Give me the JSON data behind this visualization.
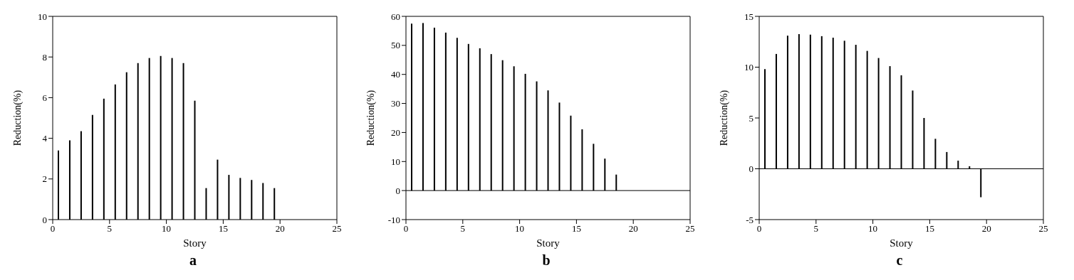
{
  "chart_data": [
    {
      "type": "bar",
      "title": "a",
      "xlabel": "Story",
      "ylabel": "Reduction(%)",
      "x": [
        0.5,
        1.5,
        2.5,
        3.5,
        4.5,
        5.5,
        6.5,
        7.5,
        8.5,
        9.5,
        10.5,
        11.5,
        12.5,
        13.5,
        14.5,
        15.5,
        16.5,
        17.5,
        18.5,
        19.5
      ],
      "series": [
        {
          "color": "#000000",
          "values": [
            3.4,
            3.9,
            4.35,
            5.15,
            5.95,
            6.65,
            7.25,
            7.7,
            7.95,
            8.05,
            7.95,
            7.7,
            5.85,
            1.55,
            2.95,
            2.2,
            2.05,
            1.95,
            1.8,
            1.55
          ]
        }
      ],
      "xlim": [
        0,
        25
      ],
      "xticks": [
        0,
        5,
        10,
        15,
        20,
        25
      ],
      "ylim": [
        0,
        10
      ],
      "yticks": [
        0,
        2,
        4,
        6,
        8,
        10
      ],
      "grid": false,
      "legend": false
    },
    {
      "type": "bar",
      "title": "b",
      "xlabel": "Story",
      "ylabel": "Reduction(%)",
      "x": [
        0.5,
        1.5,
        2.5,
        3.5,
        4.5,
        5.5,
        6.5,
        7.5,
        8.5,
        9.5,
        10.5,
        11.5,
        12.5,
        13.5,
        14.5,
        15.5,
        16.5,
        17.5,
        18.5,
        19.5
      ],
      "series": [
        {
          "color": "#000000",
          "values": [
            57.5,
            57.7,
            56.1,
            54.4,
            52.6,
            50.5,
            49,
            47,
            44.9,
            42.8,
            40.2,
            37.6,
            34.5,
            30.3,
            25.8,
            21.1,
            16.1,
            11,
            5.5,
            0
          ]
        }
      ],
      "xlim": [
        0,
        25
      ],
      "xticks": [
        0,
        5,
        10,
        15,
        20,
        25
      ],
      "ylim": [
        -10,
        60
      ],
      "yticks": [
        -10,
        0,
        10,
        20,
        30,
        40,
        50,
        60
      ],
      "ref_lines": [
        {
          "axis": "y",
          "value": 0,
          "color": "#000000"
        }
      ],
      "grid": false,
      "legend": false
    },
    {
      "type": "bar",
      "title": "c",
      "xlabel": "Story",
      "ylabel": "Reduction(%)",
      "x": [
        0.5,
        1.5,
        2.5,
        3.5,
        4.5,
        5.5,
        6.5,
        7.5,
        8.5,
        9.5,
        10.5,
        11.5,
        12.5,
        13.5,
        14.5,
        15.5,
        16.5,
        17.5,
        18.5,
        19.5
      ],
      "series": [
        {
          "color": "#000000",
          "values": [
            9.8,
            11.3,
            13.1,
            13.25,
            13.2,
            13.05,
            12.9,
            12.6,
            12.2,
            11.6,
            10.9,
            10.1,
            9.2,
            7.7,
            5,
            2.95,
            1.65,
            0.8,
            0.25,
            -2.8
          ]
        }
      ],
      "xlim": [
        0,
        25
      ],
      "xticks": [
        0,
        5,
        10,
        15,
        20,
        25
      ],
      "ylim": [
        -5,
        15
      ],
      "yticks": [
        -5,
        0,
        5,
        10,
        15
      ],
      "ref_lines": [
        {
          "axis": "y",
          "value": 0,
          "color": "#000000"
        }
      ],
      "grid": false,
      "legend": false
    }
  ]
}
